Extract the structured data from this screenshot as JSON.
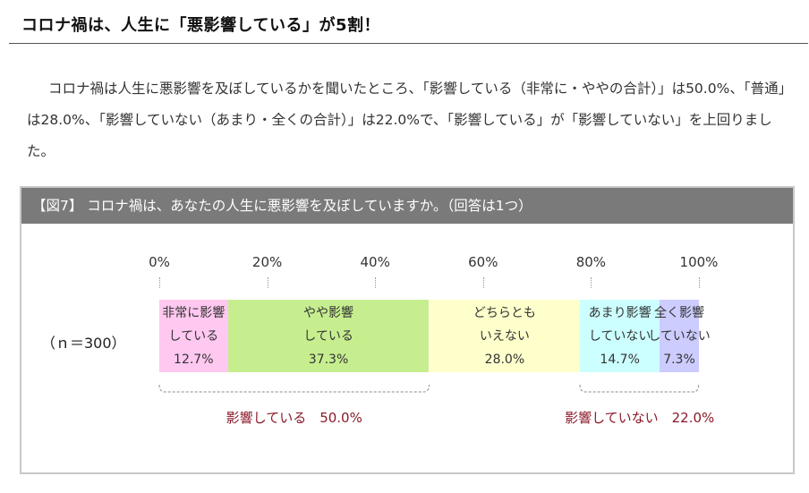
{
  "heading": "コロナ禍は、人生に「悪影響している」が5割！",
  "body_text": "コロナ禍は人生に悪影響を及ぼしているかを聞いたところ、「影響している（非常に・ややの合計）」は50.0%、「普通」は28.0%、「影響していない（あまり・全くの合計）」は22.0%で、「影響している」が「影響していない」を上回りました。",
  "figure_title": "【図7】 コロナ禍は、あなたの人生に悪影響を及ぼしていますか。（回答は1つ）",
  "chart_data": {
    "type": "bar",
    "orientation": "horizontal-stacked-100",
    "title": "",
    "xlabel": "",
    "ylabel": "",
    "xlim": [
      0,
      100
    ],
    "ticks": [
      "0%",
      "20%",
      "40%",
      "60%",
      "80%",
      "100%"
    ],
    "tick_values": [
      0,
      20,
      40,
      60,
      80,
      100
    ],
    "sample_label": "（ｎ＝300）",
    "categories": [
      "（ｎ＝300）"
    ],
    "series": [
      {
        "label_lines": [
          "非常に影響",
          "している"
        ],
        "value_label": "12.7%",
        "value": 12.7,
        "color": "#ffc8f0"
      },
      {
        "label_lines": [
          "やや影響",
          "している"
        ],
        "value_label": "37.3%",
        "value": 37.3,
        "color": "#c6ee8f"
      },
      {
        "label_lines": [
          "どちらとも",
          "いえない"
        ],
        "value_label": "28.0%",
        "value": 28.0,
        "color": "#ffffcc"
      },
      {
        "label_lines": [
          "あまり影響",
          "していない"
        ],
        "value_label": "14.7%",
        "value": 14.7,
        "color": "#ccffff"
      },
      {
        "label_lines": [
          "全く影響",
          "していない"
        ],
        "value_label": "7.3%",
        "value": 7.3,
        "color": "#ccccff"
      }
    ],
    "groups": [
      {
        "label": "影響している　50.0%",
        "from": 0,
        "to": 50.0
      },
      {
        "label": "影響していない　22.0%",
        "from": 78.0,
        "to": 100
      }
    ],
    "grid": true,
    "legend": "none"
  }
}
